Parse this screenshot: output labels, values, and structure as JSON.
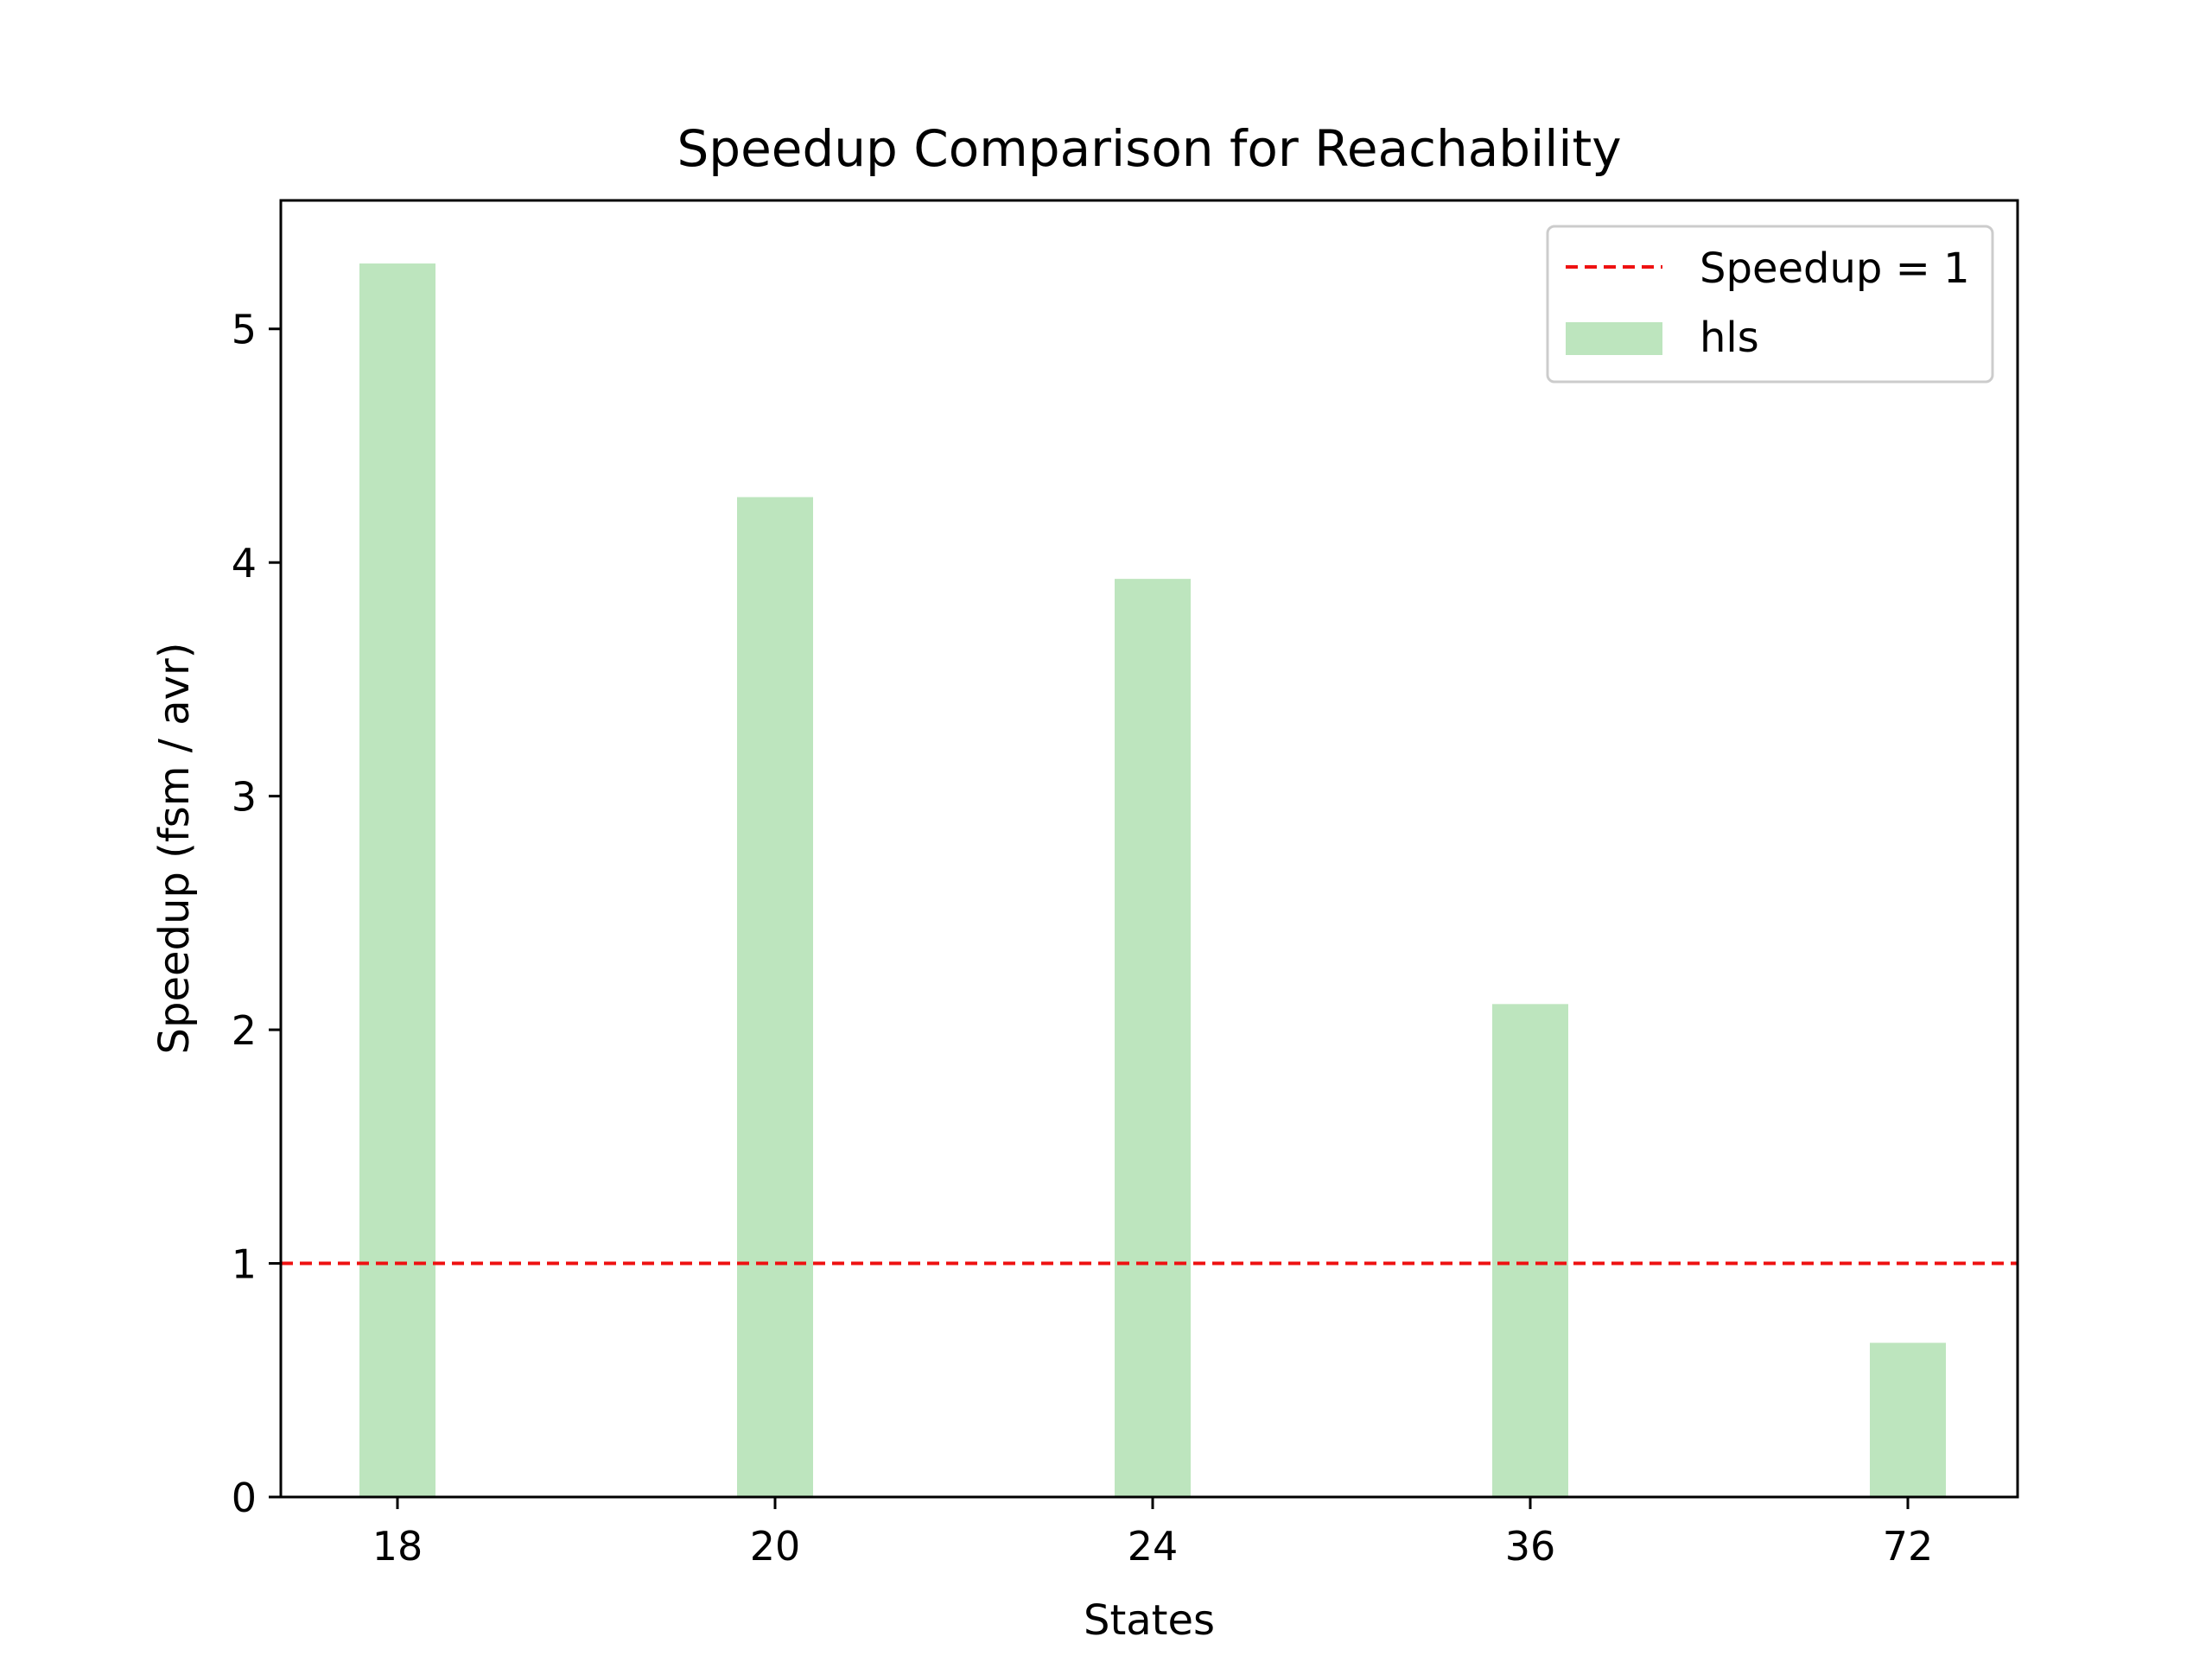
{
  "chart_data": {
    "type": "bar",
    "title": "Speedup Comparison for Reachability",
    "xlabel": "States",
    "ylabel": "Speedup (fsm / avr)",
    "categories": [
      "18",
      "20",
      "24",
      "36",
      "72"
    ],
    "series": [
      {
        "name": "hls",
        "values": [
          5.28,
          4.28,
          3.93,
          2.11,
          0.66
        ],
        "color": "#bde5be"
      }
    ],
    "reference_line": {
      "label": "Speedup = 1",
      "value": 1,
      "color": "#ee1111",
      "style": "dashed"
    },
    "ylim": [
      0,
      5.55
    ],
    "yticks": [
      0,
      1,
      2,
      3,
      4,
      5
    ],
    "grid": false,
    "legend": {
      "position": "top-right",
      "entries": [
        "Speedup = 1",
        "hls"
      ]
    }
  }
}
